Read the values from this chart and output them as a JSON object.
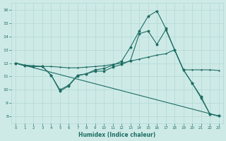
{
  "xlabel": "Humidex (Indice chaleur)",
  "xlim": [
    -0.5,
    23.5
  ],
  "ylim": [
    7.5,
    16.5
  ],
  "yticks": [
    8,
    9,
    10,
    11,
    12,
    13,
    14,
    15,
    16
  ],
  "xticks": [
    0,
    1,
    2,
    3,
    4,
    5,
    6,
    7,
    8,
    9,
    10,
    11,
    12,
    13,
    14,
    15,
    16,
    17,
    18,
    19,
    20,
    21,
    22,
    23
  ],
  "background_color": "#ceeae7",
  "grid_color": "#b0d8d4",
  "line_color": "#1e6e64",
  "line1_x": [
    0,
    1,
    2,
    3,
    4,
    5,
    6,
    7,
    8,
    9,
    10,
    11,
    12,
    13,
    14,
    15,
    16,
    17,
    18,
    19,
    20,
    21,
    22,
    23
  ],
  "line1_y": [
    12.0,
    11.8,
    11.75,
    11.75,
    11.1,
    10.0,
    10.35,
    11.1,
    11.2,
    11.5,
    11.6,
    11.85,
    12.15,
    13.2,
    14.4,
    15.5,
    15.9,
    14.6,
    13.0,
    11.5,
    10.5,
    9.4,
    8.2,
    8.05
  ],
  "line2_x": [
    0,
    1,
    2,
    3,
    4,
    5,
    6,
    7,
    8,
    9,
    10,
    11,
    12,
    13,
    14,
    15,
    16,
    17,
    18,
    19,
    20,
    21,
    22,
    23
  ],
  "line2_y": [
    12.0,
    11.8,
    11.75,
    11.75,
    11.1,
    9.9,
    10.3,
    11.05,
    11.2,
    11.4,
    11.4,
    11.7,
    11.9,
    12.2,
    14.2,
    14.4,
    13.4,
    14.5,
    13.0,
    11.5,
    10.5,
    9.5,
    8.2,
    8.05
  ],
  "line3_x": [
    0,
    23
  ],
  "line3_y": [
    12.0,
    8.05
  ],
  "line4_x": [
    0,
    1,
    2,
    3,
    4,
    5,
    6,
    7,
    8,
    9,
    10,
    11,
    12,
    13,
    14,
    15,
    16,
    17,
    18,
    19,
    20,
    21,
    22,
    23
  ],
  "line4_y": [
    12.0,
    11.85,
    11.8,
    11.75,
    11.75,
    11.7,
    11.65,
    11.65,
    11.7,
    11.75,
    11.8,
    11.9,
    12.0,
    12.15,
    12.3,
    12.45,
    12.6,
    12.7,
    13.0,
    11.5,
    11.5,
    11.5,
    11.5,
    11.45
  ]
}
